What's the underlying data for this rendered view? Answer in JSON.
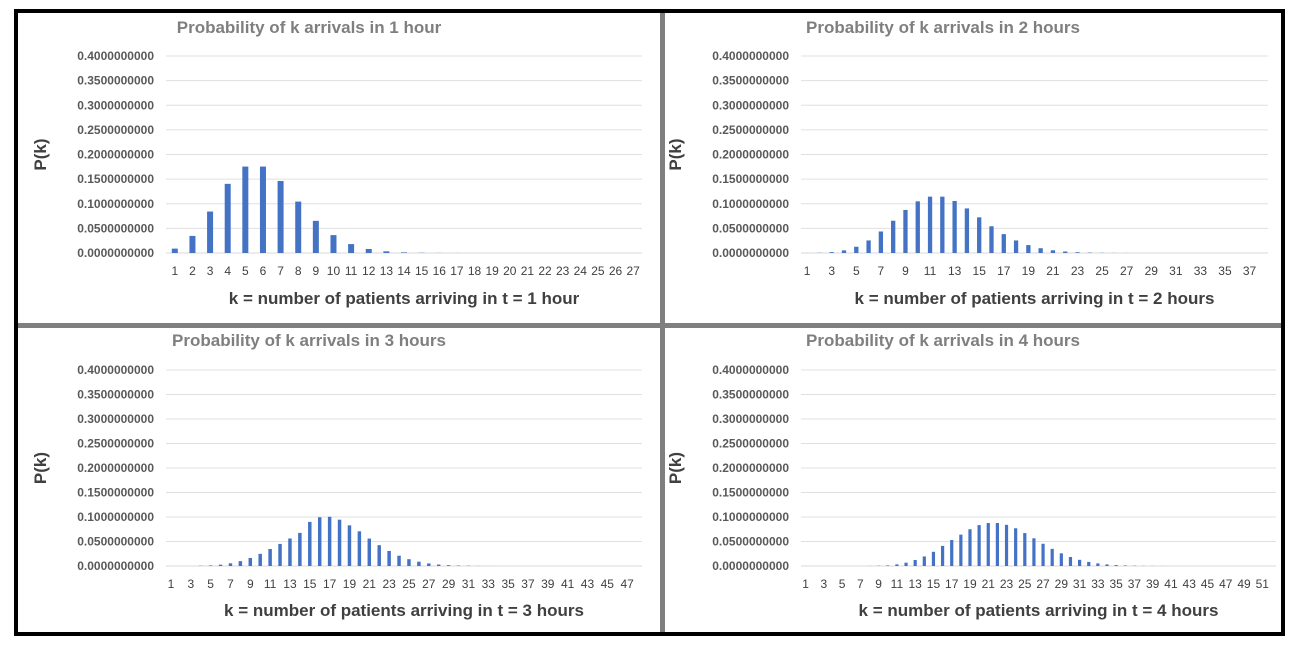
{
  "chart_data": [
    {
      "type": "bar",
      "title": "Probability of k arrivals in 1 hour",
      "xlabel": "k = number of patients arriving in t = 1 hour",
      "ylabel": "P(k)",
      "ylim": [
        0,
        0.4
      ],
      "ytick_labels": [
        "0.4000000000",
        "0.3500000000",
        "0.3000000000",
        "0.2500000000",
        "0.2000000000",
        "0.1500000000",
        "0.1000000000",
        "0.0500000000",
        "0.0000000000"
      ],
      "categories": [
        "1",
        "2",
        "3",
        "4",
        "5",
        "6",
        "7",
        "8",
        "9",
        "10",
        "11",
        "12",
        "13",
        "14",
        "15",
        "16",
        "17",
        "18",
        "19",
        "20",
        "21",
        "22",
        "23",
        "24",
        "25",
        "26",
        "27"
      ],
      "xtick_labels": [
        "1",
        "2",
        "3",
        "4",
        "5",
        "6",
        "7",
        "8",
        "9",
        "10",
        "11",
        "12",
        "13",
        "14",
        "15",
        "16",
        "17",
        "18",
        "19",
        "20",
        "21",
        "22",
        "23",
        "24",
        "25",
        "26",
        "27"
      ],
      "values": [
        0.0089,
        0.0347,
        0.0842,
        0.1404,
        0.1755,
        0.1755,
        0.1462,
        0.1044,
        0.0653,
        0.0363,
        0.0181,
        0.0082,
        0.0034,
        0.0013,
        0.0005,
        0.0002,
        0.0001,
        0,
        0,
        0,
        0,
        0,
        0,
        0,
        0,
        0,
        0
      ],
      "grid": true,
      "color": "#4472c4"
    },
    {
      "type": "bar",
      "title": "Probability of k arrivals in 2 hours",
      "xlabel": "k = number of patients arriving in t = 2 hours",
      "ylabel": "P(k)",
      "ylim": [
        0,
        0.4
      ],
      "ytick_labels": [
        "0.4000000000",
        "0.3500000000",
        "0.3000000000",
        "0.2500000000",
        "0.2000000000",
        "0.1500000000",
        "0.1000000000",
        "0.0500000000",
        "0.0000000000"
      ],
      "categories": [
        "1",
        "2",
        "3",
        "4",
        "5",
        "6",
        "7",
        "8",
        "9",
        "10",
        "11",
        "12",
        "13",
        "14",
        "15",
        "16",
        "17",
        "18",
        "19",
        "20",
        "21",
        "22",
        "23",
        "24",
        "25",
        "26",
        "27",
        "28",
        "29",
        "30",
        "31",
        "32",
        "33",
        "34",
        "35",
        "36",
        "37",
        "38"
      ],
      "xtick_labels": [
        "1",
        "",
        "3",
        "",
        "5",
        "",
        "7",
        "",
        "9",
        "",
        "11",
        "",
        "13",
        "",
        "15",
        "",
        "17",
        "",
        "19",
        "",
        "21",
        "",
        "23",
        "",
        "25",
        "",
        "27",
        "",
        "29",
        "",
        "31",
        "",
        "33",
        "",
        "35",
        "",
        "37",
        ""
      ],
      "values": [
        0.0001,
        0.0004,
        0.0018,
        0.0053,
        0.0127,
        0.0255,
        0.0437,
        0.0655,
        0.0874,
        0.1049,
        0.1144,
        0.1144,
        0.1056,
        0.0905,
        0.0724,
        0.0543,
        0.0383,
        0.0255,
        0.0161,
        0.0097,
        0.0055,
        0.003,
        0.0016,
        0.0008,
        0.0004,
        0.0002,
        0.0001,
        0,
        0,
        0,
        0,
        0,
        0,
        0,
        0,
        0,
        0,
        0
      ],
      "grid": true,
      "color": "#4472c4"
    },
    {
      "type": "bar",
      "title": "Probability of k arrivals in 3 hours",
      "xlabel": "k = number of patients arriving in t = 3 hours",
      "ylabel": "P(k)",
      "ylim": [
        0,
        0.4
      ],
      "ytick_labels": [
        "0.4000000000",
        "0.3500000000",
        "0.3000000000",
        "0.2500000000",
        "0.2000000000",
        "0.1500000000",
        "0.1000000000",
        "0.0500000000",
        "0.0000000000"
      ],
      "categories": [
        "1",
        "2",
        "3",
        "4",
        "5",
        "6",
        "7",
        "8",
        "9",
        "10",
        "11",
        "12",
        "13",
        "14",
        "15",
        "16",
        "17",
        "18",
        "19",
        "20",
        "21",
        "22",
        "23",
        "24",
        "25",
        "26",
        "27",
        "28",
        "29",
        "30",
        "31",
        "32",
        "33",
        "34",
        "35",
        "36",
        "37",
        "38",
        "39",
        "40",
        "41",
        "42",
        "43",
        "44",
        "45",
        "46",
        "47",
        "48"
      ],
      "xtick_labels": [
        "1",
        "",
        "3",
        "",
        "5",
        "",
        "7",
        "",
        "9",
        "",
        "11",
        "",
        "13",
        "",
        "15",
        "",
        "17",
        "",
        "19",
        "",
        "21",
        "",
        "23",
        "",
        "25",
        "",
        "27",
        "",
        "29",
        "",
        "31",
        "",
        "33",
        "",
        "35",
        "",
        "37",
        "",
        "39",
        "",
        "41",
        "",
        "43",
        "",
        "45",
        "",
        "47",
        ""
      ],
      "values": [
        0,
        0,
        0,
        0.0005,
        0.0012,
        0.0027,
        0.0055,
        0.0099,
        0.0164,
        0.0248,
        0.0347,
        0.0451,
        0.0561,
        0.0676,
        0.09,
        0.0995,
        0.1005,
        0.0945,
        0.083,
        0.0708,
        0.056,
        0.0425,
        0.0306,
        0.021,
        0.0139,
        0.0088,
        0.0052,
        0.003,
        0.0017,
        0.0009,
        0.0005,
        0.0002,
        0.0001,
        0,
        0,
        0,
        0,
        0,
        0,
        0,
        0,
        0,
        0,
        0,
        0,
        0,
        0,
        0
      ],
      "grid": true,
      "color": "#4472c4"
    },
    {
      "type": "bar",
      "title": "Probability of k arrivals in 4 hours",
      "xlabel": "k = number of patients arriving in t = 4 hours",
      "ylabel": "P(k)",
      "ylim": [
        0,
        0.4
      ],
      "ytick_labels": [
        "0.4000000000",
        "0.3500000000",
        "0.3000000000",
        "0.2500000000",
        "0.2000000000",
        "0.1500000000",
        "0.1000000000",
        "0.0500000000",
        "0.0000000000"
      ],
      "categories": [
        "1",
        "2",
        "3",
        "4",
        "5",
        "6",
        "7",
        "8",
        "9",
        "10",
        "11",
        "12",
        "13",
        "14",
        "15",
        "16",
        "17",
        "18",
        "19",
        "20",
        "21",
        "22",
        "23",
        "24",
        "25",
        "26",
        "27",
        "28",
        "29",
        "30",
        "31",
        "32",
        "33",
        "34",
        "35",
        "36",
        "37",
        "38",
        "39",
        "40",
        "41",
        "42",
        "43",
        "44",
        "45",
        "46",
        "47",
        "48",
        "49",
        "50",
        "51",
        "52"
      ],
      "xtick_labels": [
        "1",
        "",
        "3",
        "",
        "5",
        "",
        "7",
        "",
        "9",
        "",
        "11",
        "",
        "13",
        "",
        "15",
        "",
        "17",
        "",
        "19",
        "",
        "21",
        "",
        "23",
        "",
        "25",
        "",
        "27",
        "",
        "29",
        "",
        "31",
        "",
        "33",
        "",
        "35",
        "",
        "37",
        "",
        "39",
        "",
        "41",
        "",
        "43",
        "",
        "45",
        "",
        "47",
        "",
        "49",
        "",
        "51",
        ""
      ],
      "values": [
        0,
        0,
        0,
        0,
        0,
        0,
        0,
        0.0002,
        0.0005,
        0.0012,
        0.0033,
        0.0068,
        0.0123,
        0.0195,
        0.029,
        0.041,
        0.053,
        0.064,
        0.075,
        0.0835,
        0.0877,
        0.0877,
        0.084,
        0.077,
        0.0672,
        0.0565,
        0.0454,
        0.035,
        0.0259,
        0.0184,
        0.0126,
        0.0083,
        0.0053,
        0.0032,
        0.0019,
        0.0011,
        0.0006,
        0.0003,
        0.0002,
        0.0001,
        0,
        0,
        0,
        0,
        0,
        0,
        0,
        0,
        0,
        0,
        0,
        0
      ],
      "grid": true,
      "color": "#4472c4"
    }
  ]
}
